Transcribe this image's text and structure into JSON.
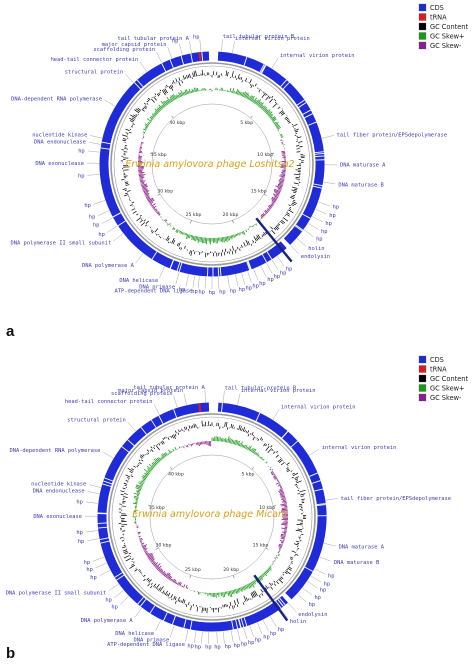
{
  "legend": {
    "items": [
      {
        "label": "CDS",
        "color": "#1f2bd6"
      },
      {
        "label": "tRNA",
        "color": "#d81e1e"
      },
      {
        "label": "GC Content",
        "color": "#000000"
      },
      {
        "label": "GC Skew+",
        "color": "#1a9a1a"
      },
      {
        "label": "GC Skew-",
        "color": "#8a1f8a"
      }
    ]
  },
  "colors": {
    "cds": "#1f2bd6",
    "trna": "#d81e1e",
    "gc_content": "#000000",
    "gc_skew_pos": "#1a9a1a",
    "gc_skew_neg": "#8a1f8a",
    "label": "#3b3bb0",
    "title": "#d9a21a",
    "marker": "#1a237e"
  },
  "panels": [
    {
      "letter": "a",
      "title": "Erwinia amylovora phage Loshitsa2",
      "genome_kbp": 45,
      "ticks_kbp": [
        "5 kbp",
        "10 kbp",
        "15 kbp",
        "20 kbp",
        "25 kbp",
        "30 kbp",
        "35 kbp",
        "40 kbp"
      ],
      "marker_kbp": 17.6,
      "labels": [
        {
          "text": "tail tubular protein B",
          "kbp": 0.6
        },
        {
          "text": "internal virion protein",
          "kbp": 1.3
        },
        {
          "text": "hp",
          "kbp": 44.3
        },
        {
          "text": "tail tubular protein A",
          "kbp": 43.7
        },
        {
          "text": "hp",
          "kbp": 43.1
        },
        {
          "text": "major capsid protein",
          "kbp": 42.4
        },
        {
          "text": "scaffolding protein",
          "kbp": 41.7
        },
        {
          "text": "head-tail connector protein",
          "kbp": 40.6
        },
        {
          "text": "structural protein",
          "kbp": 39.5
        },
        {
          "text": "internal virion protein",
          "kbp": 4.0
        },
        {
          "text": "DNA-dependent RNA polymerase",
          "kbp": 37.6
        },
        {
          "text": "tail fiber protein/EPSdepolymerase",
          "kbp": 9.6
        },
        {
          "text": "nucleotide kinase",
          "kbp": 35.4
        },
        {
          "text": "DNA endonuclease",
          "kbp": 35.0
        },
        {
          "text": "hp",
          "kbp": 34.5
        },
        {
          "text": "DNA exonuclease",
          "kbp": 33.8
        },
        {
          "text": "DNA maturase A",
          "kbp": 11.3
        },
        {
          "text": "hp",
          "kbp": 33.1
        },
        {
          "text": "DNA maturase B",
          "kbp": 12.4
        },
        {
          "text": "hp",
          "kbp": 31.4
        },
        {
          "text": "hp",
          "kbp": 30.7
        },
        {
          "text": "hp",
          "kbp": 30.2
        },
        {
          "text": "hp",
          "kbp": 29.6
        },
        {
          "text": "DNA polymerase II small subunit",
          "kbp": 29.0
        },
        {
          "text": "hp",
          "kbp": 13.7
        },
        {
          "text": "hp",
          "kbp": 14.2
        },
        {
          "text": "hp",
          "kbp": 14.7
        },
        {
          "text": "hp",
          "kbp": 15.2
        },
        {
          "text": "hp",
          "kbp": 15.7
        },
        {
          "text": "holin",
          "kbp": 16.4
        },
        {
          "text": "endolysin",
          "kbp": 17.0
        },
        {
          "text": "DNA polymerase A",
          "kbp": 27.2
        },
        {
          "text": "DNA helicase",
          "kbp": 25.6
        },
        {
          "text": "DNA primase",
          "kbp": 24.6
        },
        {
          "text": "ATP-dependent DNA ligase",
          "kbp": 23.6
        },
        {
          "text": "hp",
          "kbp": 24.0
        },
        {
          "text": "hp",
          "kbp": 23.3
        },
        {
          "text": "hp",
          "kbp": 22.9
        },
        {
          "text": "hp",
          "kbp": 22.5
        },
        {
          "text": "hp",
          "kbp": 22.1
        },
        {
          "text": "hp",
          "kbp": 21.5
        },
        {
          "text": "hp",
          "kbp": 21.0
        },
        {
          "text": "hp",
          "kbp": 20.6
        },
        {
          "text": "hp",
          "kbp": 20.2
        },
        {
          "text": "hp",
          "kbp": 19.8
        },
        {
          "text": "hp",
          "kbp": 19.3
        },
        {
          "text": "hp",
          "kbp": 18.9
        },
        {
          "text": "hp",
          "kbp": 18.5
        },
        {
          "text": "hp",
          "kbp": 18.1
        }
      ]
    },
    {
      "letter": "b",
      "title": "Erwinia amylovora phage Micant",
      "genome_kbp": 45,
      "ticks_kbp": [
        "5 kbp",
        "10 kbp",
        "15 kbp",
        "20 kbp",
        "25 kbp",
        "30 kbp",
        "35 kbp",
        "40 kbp"
      ],
      "marker_kbp": 18.0,
      "labels": [
        {
          "text": "tail tubular protein A",
          "kbp": 44.6
        },
        {
          "text": "tail tubular protein B",
          "kbp": 0.7
        },
        {
          "text": "major capsid protein",
          "kbp": 43.4
        },
        {
          "text": "scaffolding protein",
          "kbp": 42.8
        },
        {
          "text": "internal virion protein",
          "kbp": 1.6
        },
        {
          "text": "head-tail connector protein",
          "kbp": 41.6
        },
        {
          "text": "internal virion protein",
          "kbp": 4.0
        },
        {
          "text": "structural protein",
          "kbp": 39.8
        },
        {
          "text": "DNA-dependent RNA polymerase",
          "kbp": 37.6
        },
        {
          "text": "internal virion protein",
          "kbp": 7.2
        },
        {
          "text": "nucleotide kinase",
          "kbp": 35.6
        },
        {
          "text": "DNA endonuclease",
          "kbp": 35.2
        },
        {
          "text": "hp",
          "kbp": 34.6
        },
        {
          "text": "DNA exonuclease",
          "kbp": 33.8
        },
        {
          "text": "hp",
          "kbp": 32.9
        },
        {
          "text": "hp",
          "kbp": 32.4
        },
        {
          "text": "tail fiber protein/EPSdepolymerase",
          "kbp": 10.2
        },
        {
          "text": "hp",
          "kbp": 31.2
        },
        {
          "text": "hp",
          "kbp": 30.8
        },
        {
          "text": "hp",
          "kbp": 30.3
        },
        {
          "text": "DNA polymerase II small subunit",
          "kbp": 29.3
        },
        {
          "text": "hp",
          "kbp": 28.8
        },
        {
          "text": "hp",
          "kbp": 28.3
        },
        {
          "text": "DNA maturase A",
          "kbp": 12.9
        },
        {
          "text": "DNA maturase B",
          "kbp": 13.8
        },
        {
          "text": "DNA polymerase A",
          "kbp": 27.2
        },
        {
          "text": "hp",
          "kbp": 14.6
        },
        {
          "text": "hp",
          "kbp": 15.1
        },
        {
          "text": "hp",
          "kbp": 15.5
        },
        {
          "text": "hp",
          "kbp": 16.0
        },
        {
          "text": "hp",
          "kbp": 16.5
        },
        {
          "text": "endolysin",
          "kbp": 17.3
        },
        {
          "text": "holin",
          "kbp": 17.9
        },
        {
          "text": "DNA helicase",
          "kbp": 25.8
        },
        {
          "text": "DNA primase",
          "kbp": 24.9
        },
        {
          "text": "ATP-dependent DNA ligase",
          "kbp": 24.0
        },
        {
          "text": "hp",
          "kbp": 23.5
        },
        {
          "text": "hp",
          "kbp": 23.1
        },
        {
          "text": "hp",
          "kbp": 22.7
        },
        {
          "text": "hp",
          "kbp": 22.2
        },
        {
          "text": "hp",
          "kbp": 21.8
        },
        {
          "text": "hp",
          "kbp": 21.3
        },
        {
          "text": "hp",
          "kbp": 20.9
        },
        {
          "text": "hp",
          "kbp": 20.5
        },
        {
          "text": "hp",
          "kbp": 20.1
        },
        {
          "text": "hp",
          "kbp": 19.6
        },
        {
          "text": "hp",
          "kbp": 19.2
        },
        {
          "text": "hp",
          "kbp": 18.7
        }
      ]
    }
  ]
}
